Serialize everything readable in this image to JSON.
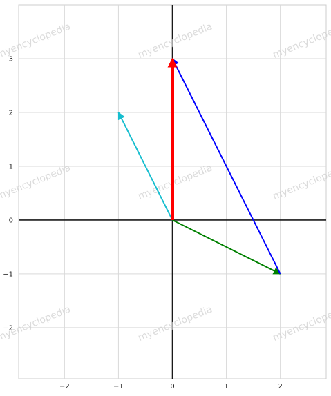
{
  "chart_data": {
    "type": "vector-plot",
    "title": "",
    "xlabel": "",
    "ylabel": "",
    "xlim": [
      -2.85,
      2.85
    ],
    "ylim": [
      -2.95,
      4.0
    ],
    "x_ticks": [
      -2,
      -1,
      0,
      1,
      2
    ],
    "y_ticks": [
      -2,
      -1,
      0,
      1,
      2,
      3
    ],
    "x_tick_labels": [
      "−2",
      "−1",
      "0",
      "1",
      "2"
    ],
    "y_tick_labels": [
      "−2",
      "−1",
      "0",
      "1",
      "2",
      "3"
    ],
    "grid": true,
    "legend": "none",
    "background": "#ffffff",
    "grid_color": "#d9d9d9",
    "axis_line_color": "#1a1a1a",
    "vectors": [
      {
        "from": [
          0,
          0
        ],
        "to": [
          -1,
          2
        ],
        "color": "#17becf"
      },
      {
        "from": [
          0,
          0
        ],
        "to": [
          2,
          -1
        ],
        "color": "#008000"
      },
      {
        "from": [
          2,
          -1
        ],
        "to": [
          0,
          3
        ],
        "color": "#0000ff"
      },
      {
        "from": [
          0,
          0
        ],
        "to": [
          0,
          3
        ],
        "color": "#ff0000"
      }
    ]
  },
  "watermark": {
    "text": "myencyclopedia",
    "color": "#cfcfcf"
  }
}
